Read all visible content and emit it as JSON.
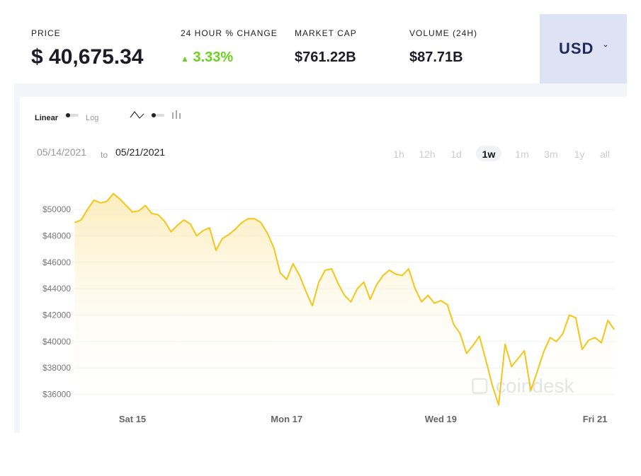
{
  "header": {
    "stats": [
      {
        "label": "PRICE",
        "value": "$ 40,675.34"
      },
      {
        "label": "24 HOUR % CHANGE",
        "value": "3.33%"
      },
      {
        "label": "MARKET CAP",
        "value": "$761.22B"
      },
      {
        "label": "VOLUME (24H)",
        "value": "$87.71B"
      }
    ],
    "currency": "USD"
  },
  "controls": {
    "scale_options": [
      "Linear",
      "Log"
    ],
    "date_from": "05/14/2021",
    "date_sep": "to",
    "date_to": "05/21/2021",
    "ranges": [
      "1h",
      "12h",
      "1d",
      "1w",
      "1m",
      "3m",
      "1y",
      "all"
    ],
    "active_range": 3
  },
  "watermark": "coindesk",
  "chart_data": {
    "type": "line",
    "color": "#f5c518",
    "categories": [
      null,
      null,
      null,
      null,
      null,
      null,
      null,
      null,
      null,
      "Sat 15",
      null,
      null,
      null,
      null,
      null,
      null,
      null,
      null,
      null,
      null,
      null,
      null,
      null,
      null,
      null,
      null,
      null,
      null,
      null,
      null,
      null,
      null,
      null,
      "Mon 17",
      null,
      null,
      null,
      null,
      null,
      null,
      null,
      null,
      null,
      null,
      null,
      null,
      null,
      null,
      null,
      null,
      null,
      null,
      null,
      null,
      null,
      null,
      null,
      "Wed 19",
      null,
      null,
      null,
      null,
      null,
      null,
      null,
      null,
      null,
      null,
      null,
      null,
      null,
      null,
      null,
      null,
      null,
      null,
      null,
      null,
      null,
      null,
      null,
      "Fri 21",
      null,
      null,
      null
    ],
    "values": [
      49000,
      49200,
      50000,
      50700,
      50500,
      50600,
      51200,
      50800,
      50300,
      49800,
      49900,
      50300,
      49700,
      49600,
      49100,
      48300,
      48800,
      49200,
      48900,
      48000,
      48400,
      48600,
      46900,
      47800,
      48100,
      48500,
      49000,
      49300,
      49300,
      49000,
      48200,
      47100,
      45200,
      44700,
      45900,
      45000,
      43800,
      42700,
      44500,
      45400,
      45500,
      44400,
      43500,
      43000,
      44000,
      44500,
      43200,
      44300,
      45000,
      45400,
      45100,
      45000,
      45500,
      44000,
      43000,
      43500,
      42900,
      43100,
      42800,
      41300,
      40600,
      39100,
      39700,
      40400,
      38600,
      36700,
      35200,
      39800,
      38100,
      38700,
      39300,
      36300,
      37700,
      39200,
      40300,
      40000,
      40600,
      42000,
      41800,
      39400,
      40100,
      40300,
      39900,
      41600,
      40900
    ],
    "ylim": [
      34800,
      52200
    ],
    "yticks": [
      {
        "value": 36000,
        "label": "$36000"
      },
      {
        "value": 38000,
        "label": "$38000"
      },
      {
        "value": 40000,
        "label": "$40000"
      },
      {
        "value": 42000,
        "label": "$42000"
      },
      {
        "value": 44000,
        "label": "$44000"
      },
      {
        "value": 46000,
        "label": "$46000"
      },
      {
        "value": 48000,
        "label": "$48000"
      },
      {
        "value": 50000,
        "label": "$50000"
      }
    ],
    "grid": true,
    "log_scale": false
  }
}
